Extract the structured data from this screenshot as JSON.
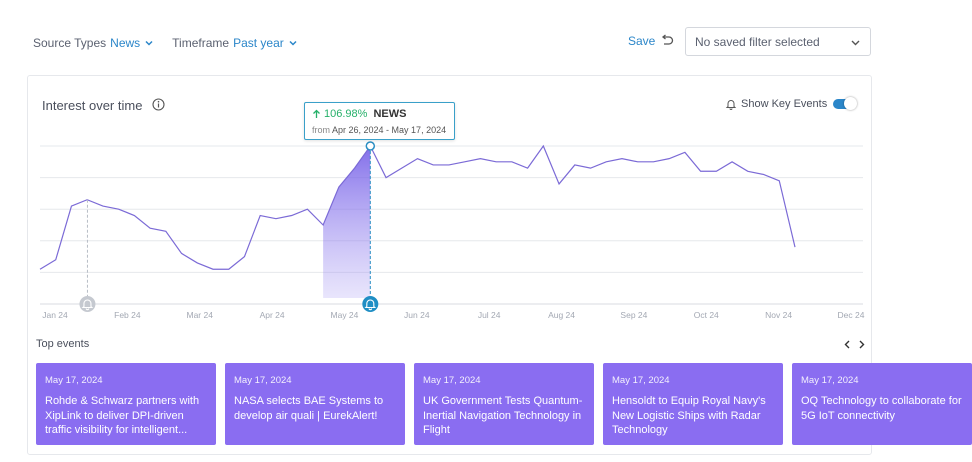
{
  "filters": {
    "source_types": {
      "label": "Source Types",
      "value": "News"
    },
    "timeframe": {
      "label": "Timeframe",
      "value": "Past year"
    },
    "save_label": "Save",
    "saved_filter_placeholder": "No saved filter selected"
  },
  "card": {
    "title": "Interest over time",
    "key_events_label": "Show Key Events",
    "key_events_enabled": true
  },
  "tooltip": {
    "percent": "106.98%",
    "series": "NEWS",
    "from_label": "from",
    "range": "Apr 26, 2024 - May 17, 2024"
  },
  "chart_data": {
    "type": "area",
    "x_tick_labels": [
      "Jan 24",
      "Feb 24",
      "Mar 24",
      "Apr 24",
      "May 24",
      "Jun 24",
      "Jul 24",
      "Aug 24",
      "Sep 24",
      "Oct 24",
      "Nov 24",
      "Dec 24"
    ],
    "y_range": [
      0,
      5
    ],
    "grid": true,
    "series": [
      {
        "color": "#7b6ad6",
        "values": [
          1.1,
          1.4,
          3.1,
          3.3,
          3.1,
          3.0,
          2.8,
          2.4,
          2.3,
          1.6,
          1.3,
          1.1,
          1.1,
          1.5,
          2.8,
          2.7,
          2.8,
          3.0,
          2.5,
          3.7,
          4.3,
          5.0,
          4.0,
          4.3,
          4.6,
          4.4,
          4.4,
          4.5,
          4.6,
          4.5,
          4.5,
          4.3,
          5.0,
          3.8,
          4.4,
          4.3,
          4.5,
          4.6,
          4.5,
          4.5,
          4.6,
          4.8,
          4.2,
          4.2,
          4.5,
          4.2,
          4.1,
          3.9,
          1.8
        ]
      }
    ],
    "highlighted_point": {
      "x_label": "May 24",
      "value": 5.0
    },
    "event_markers": [
      "Jan 24",
      "May 24"
    ]
  },
  "top_events": {
    "title": "Top events",
    "items": [
      {
        "date": "May 17, 2024",
        "text": "Rohde & Schwarz partners with XipLink to deliver DPI-driven traffic visibility for intelligent..."
      },
      {
        "date": "May 17, 2024",
        "text": "NASA selects BAE Systems to develop air quali | EurekAlert!"
      },
      {
        "date": "May 17, 2024",
        "text": "UK Government Tests Quantum-Inertial Navigation Technology in Flight"
      },
      {
        "date": "May 17, 2024",
        "text": "Hensoldt to Equip Royal Navy's New Logistic Ships with Radar Technology"
      },
      {
        "date": "May 17, 2024",
        "text": "OQ Technology to collaborate for 5G IoT connectivity"
      }
    ]
  },
  "colors": {
    "accent_blue": "#2b86c9",
    "event_purple": "#8a6df1",
    "line_purple": "#7b6ad6",
    "positive_green": "#26b06a"
  }
}
